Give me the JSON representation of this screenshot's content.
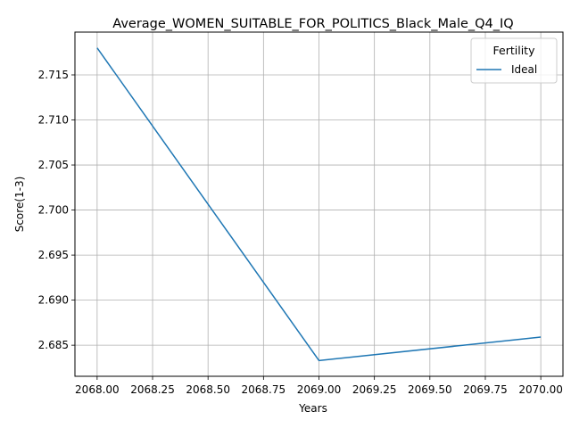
{
  "chart_data": {
    "type": "line",
    "title": "Average_WOMEN_SUITABLE_FOR_POLITICS_Black_Male_Q4_IQ",
    "xlabel": "Years",
    "ylabel": "Score(1-3)",
    "xlim": [
      2067.9,
      2070.1
    ],
    "ylim": [
      2.68155,
      2.71975
    ],
    "xticks": [
      2068.0,
      2068.25,
      2068.5,
      2068.75,
      2069.0,
      2069.25,
      2069.5,
      2069.75,
      2070.0
    ],
    "xtick_labels": [
      "2068.00",
      "2068.25",
      "2068.50",
      "2068.75",
      "2069.00",
      "2069.25",
      "2069.50",
      "2069.75",
      "2070.00"
    ],
    "yticks": [
      2.685,
      2.69,
      2.695,
      2.7,
      2.705,
      2.71,
      2.715
    ],
    "ytick_labels": [
      "2.685",
      "2.690",
      "2.695",
      "2.700",
      "2.705",
      "2.710",
      "2.715"
    ],
    "grid": true,
    "legend": {
      "title": "Fertility",
      "placement": "top-right"
    },
    "series": [
      {
        "name": "Ideal",
        "color": "#1f77b4",
        "x": [
          2068,
          2069,
          2070
        ],
        "y": [
          2.718,
          2.6833,
          2.6859
        ]
      }
    ]
  }
}
